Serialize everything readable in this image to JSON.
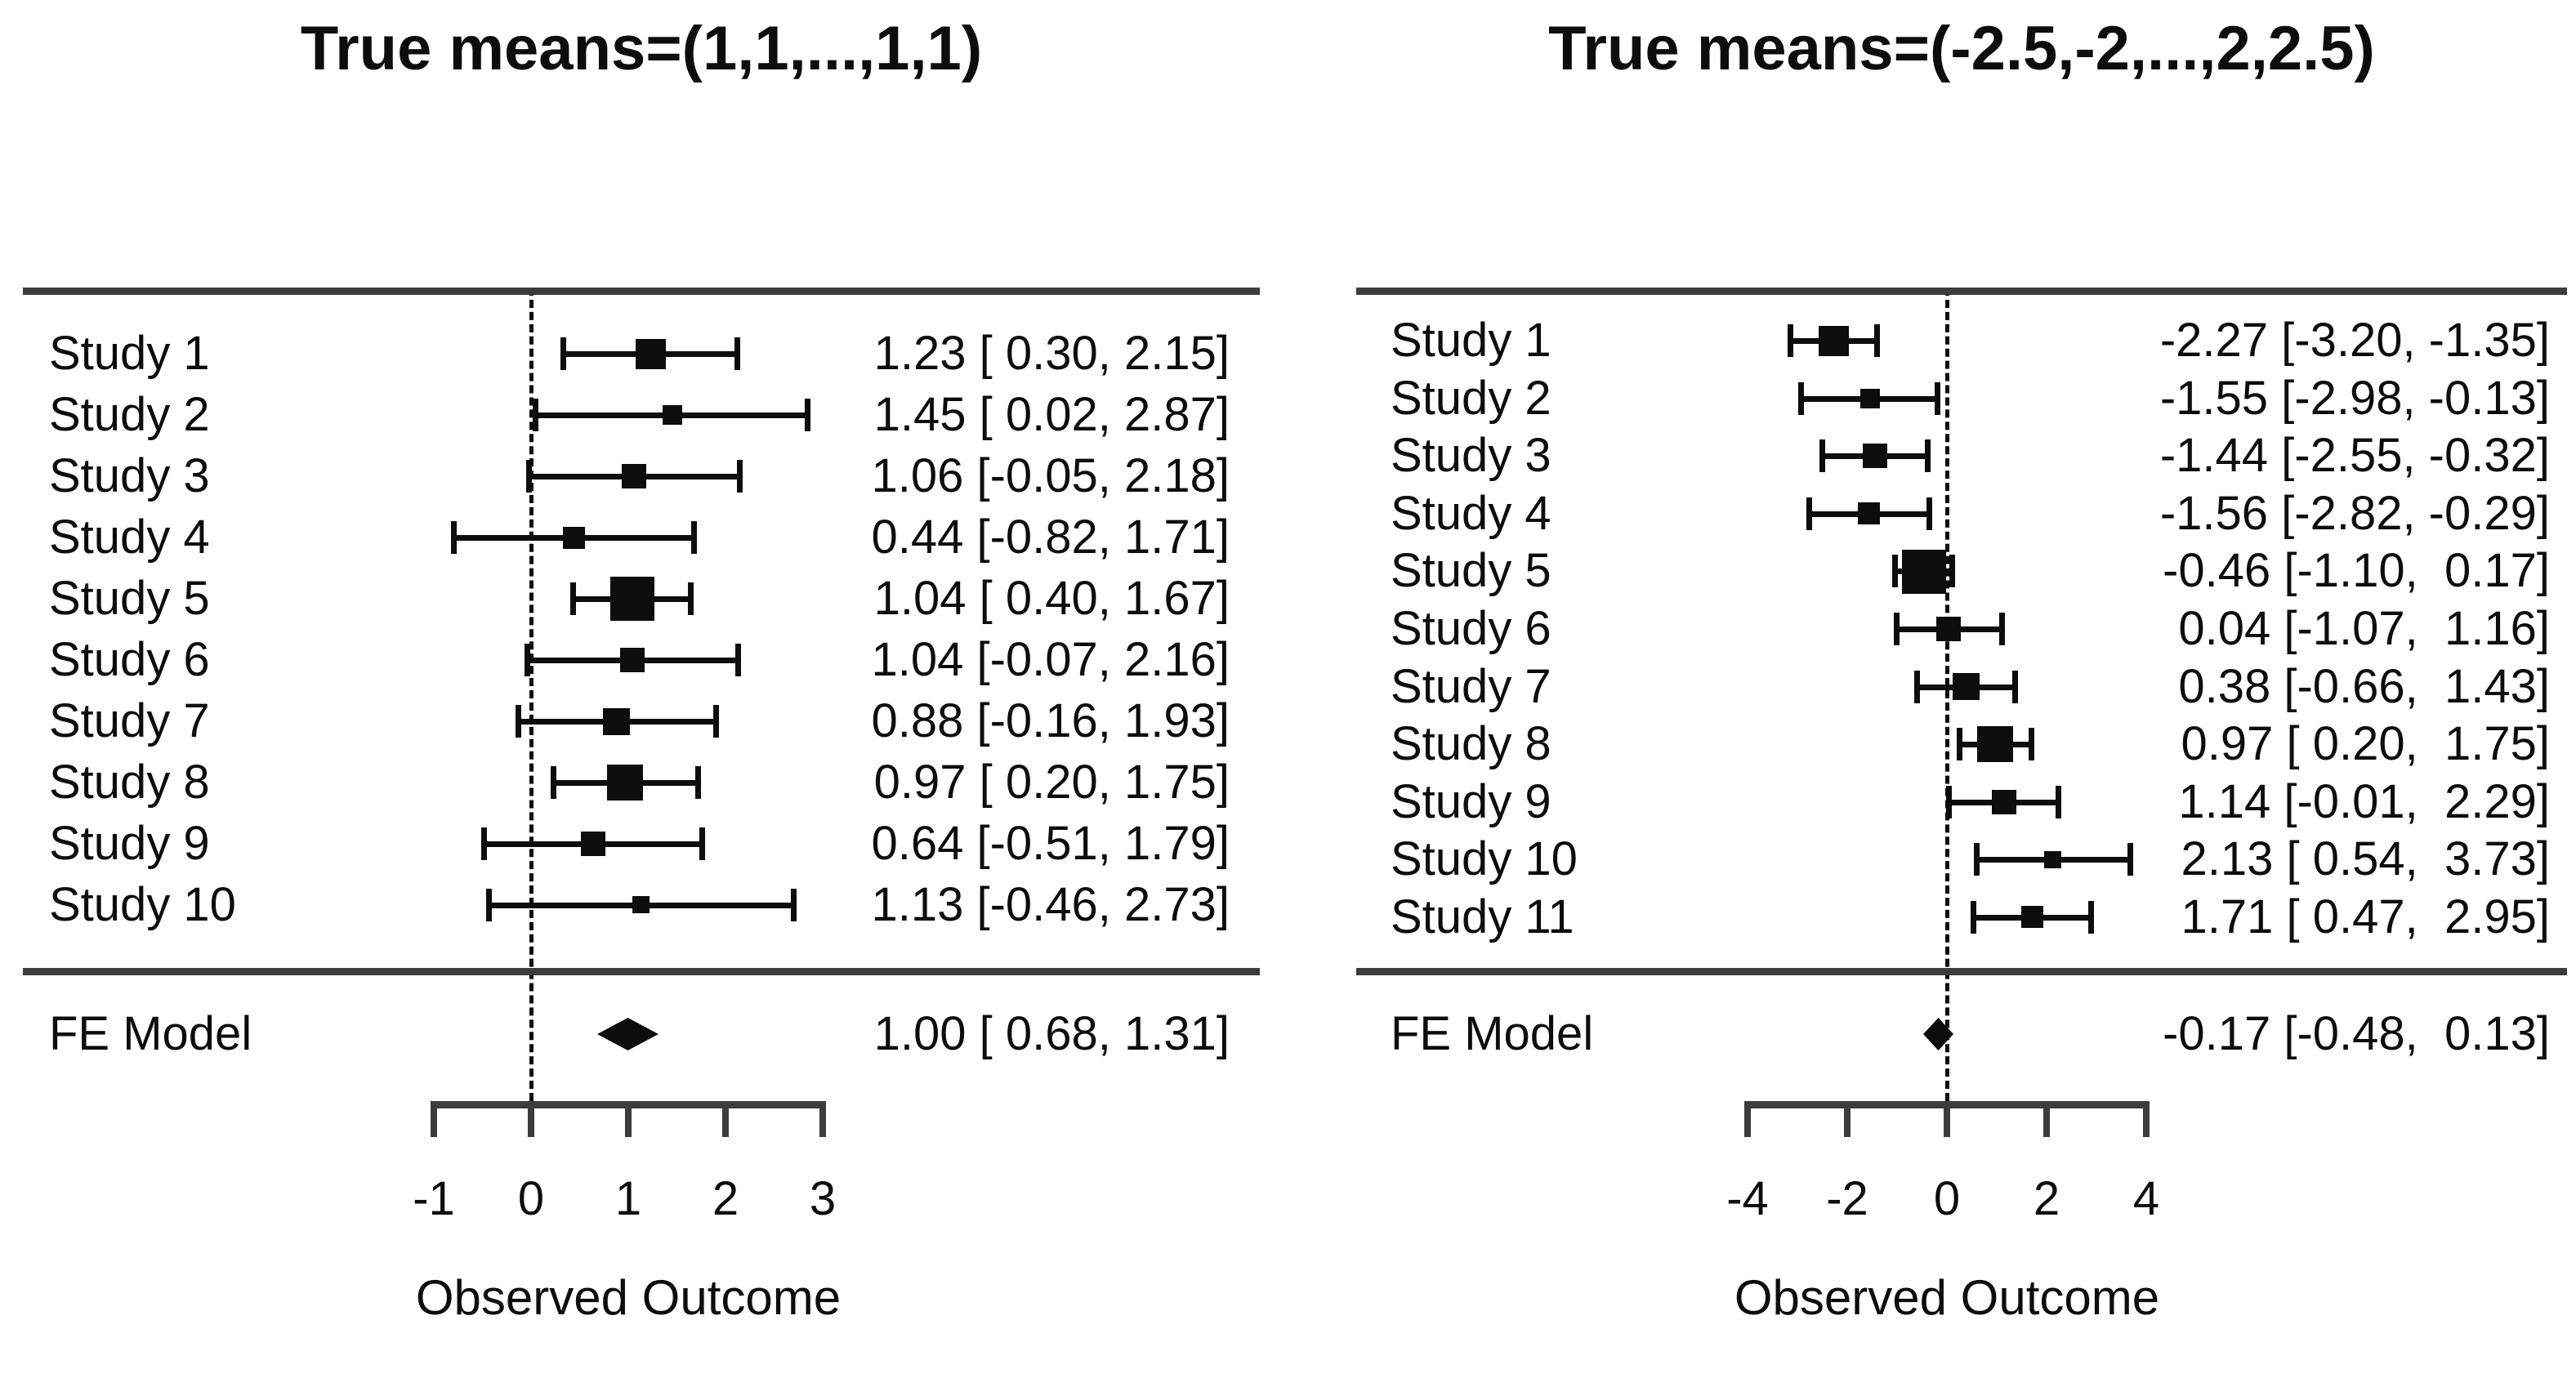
{
  "figure": {
    "background": "#ffffff",
    "ink": "#0d0d0d",
    "rule_color": "#3c3c3c"
  },
  "chart_data": [
    {
      "type": "forest",
      "title": "True means=(1,1,...,1,1)",
      "xlabel": "Observed Outcome",
      "x_ticks": [
        "-1",
        "0",
        "1",
        "2",
        "3"
      ],
      "x_tick_values": [
        -1,
        0,
        1,
        2,
        3
      ],
      "xlim": [
        -1.6,
        3.8
      ],
      "reference_line": 0,
      "grid": false,
      "legend_position": "none",
      "studies": [
        {
          "label": "Study 1",
          "estimate": 1.23,
          "ci_lower": 0.3,
          "ci_upper": 2.15,
          "annotation": "1.23 [ 0.30, 2.15]"
        },
        {
          "label": "Study 2",
          "estimate": 1.45,
          "ci_lower": 0.02,
          "ci_upper": 2.87,
          "annotation": "1.45 [ 0.02, 2.87]"
        },
        {
          "label": "Study 3",
          "estimate": 1.06,
          "ci_lower": -0.05,
          "ci_upper": 2.18,
          "annotation": "1.06 [-0.05, 2.18]"
        },
        {
          "label": "Study 4",
          "estimate": 0.44,
          "ci_lower": -0.82,
          "ci_upper": 1.71,
          "annotation": "0.44 [-0.82, 1.71]"
        },
        {
          "label": "Study 5",
          "estimate": 1.04,
          "ci_lower": 0.4,
          "ci_upper": 1.67,
          "annotation": "1.04 [ 0.40, 1.67]"
        },
        {
          "label": "Study 6",
          "estimate": 1.04,
          "ci_lower": -0.07,
          "ci_upper": 2.16,
          "annotation": "1.04 [-0.07, 2.16]"
        },
        {
          "label": "Study 7",
          "estimate": 0.88,
          "ci_lower": -0.16,
          "ci_upper": 1.93,
          "annotation": "0.88 [-0.16, 1.93]"
        },
        {
          "label": "Study 8",
          "estimate": 0.97,
          "ci_lower": 0.2,
          "ci_upper": 1.75,
          "annotation": "0.97 [ 0.20, 1.75]"
        },
        {
          "label": "Study 9",
          "estimate": 0.64,
          "ci_lower": -0.51,
          "ci_upper": 1.79,
          "annotation": "0.64 [-0.51, 1.79]"
        },
        {
          "label": "Study 10",
          "estimate": 1.13,
          "ci_lower": -0.46,
          "ci_upper": 2.73,
          "annotation": "1.13 [-0.46, 2.73]"
        }
      ],
      "summary": {
        "label": "FE Model",
        "estimate": 1.0,
        "ci_lower": 0.68,
        "ci_upper": 1.31,
        "annotation": "1.00 [ 0.68, 1.31]"
      }
    },
    {
      "type": "forest",
      "title": "True means=(-2.5,-2,...,2,2.5)",
      "xlabel": "Observed Outcome",
      "x_ticks": [
        "-4",
        "-2",
        "0",
        "2",
        "4"
      ],
      "x_tick_values": [
        -4,
        -2,
        0,
        2,
        4
      ],
      "xlim": [
        -4.6,
        4.8
      ],
      "reference_line": 0,
      "grid": false,
      "legend_position": "none",
      "studies": [
        {
          "label": "Study 1",
          "estimate": -2.27,
          "ci_lower": -3.2,
          "ci_upper": -1.35,
          "annotation": "-2.27 [-3.20, -1.35]"
        },
        {
          "label": "Study 2",
          "estimate": -1.55,
          "ci_lower": -2.98,
          "ci_upper": -0.13,
          "annotation": "-1.55 [-2.98, -0.13]"
        },
        {
          "label": "Study 3",
          "estimate": -1.44,
          "ci_lower": -2.55,
          "ci_upper": -0.32,
          "annotation": "-1.44 [-2.55, -0.32]"
        },
        {
          "label": "Study 4",
          "estimate": -1.56,
          "ci_lower": -2.82,
          "ci_upper": -0.29,
          "annotation": "-1.56 [-2.82, -0.29]"
        },
        {
          "label": "Study 5",
          "estimate": -0.46,
          "ci_lower": -1.1,
          "ci_upper": 0.17,
          "annotation": "-0.46 [-1.10,  0.17]"
        },
        {
          "label": "Study 6",
          "estimate": 0.04,
          "ci_lower": -1.07,
          "ci_upper": 1.16,
          "annotation": "0.04 [-1.07,  1.16]"
        },
        {
          "label": "Study 7",
          "estimate": 0.38,
          "ci_lower": -0.66,
          "ci_upper": 1.43,
          "annotation": "0.38 [-0.66,  1.43]"
        },
        {
          "label": "Study 8",
          "estimate": 0.97,
          "ci_lower": 0.2,
          "ci_upper": 1.75,
          "annotation": "0.97 [ 0.20,  1.75]"
        },
        {
          "label": "Study 9",
          "estimate": 1.14,
          "ci_lower": -0.01,
          "ci_upper": 2.29,
          "annotation": "1.14 [-0.01,  2.29]"
        },
        {
          "label": "Study 10",
          "estimate": 2.13,
          "ci_lower": 0.54,
          "ci_upper": 3.73,
          "annotation": "2.13 [ 0.54,  3.73]"
        },
        {
          "label": "Study 11",
          "estimate": 1.71,
          "ci_lower": 0.47,
          "ci_upper": 2.95,
          "annotation": "1.71 [ 0.47,  2.95]"
        }
      ],
      "summary": {
        "label": "FE Model",
        "estimate": -0.17,
        "ci_lower": -0.48,
        "ci_upper": 0.13,
        "annotation": "-0.17 [-0.48,  0.13]"
      }
    }
  ]
}
